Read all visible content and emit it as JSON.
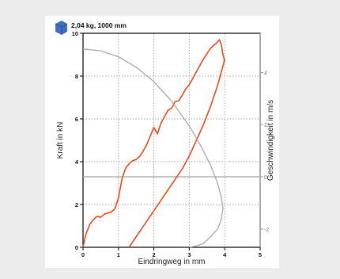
{
  "chart_data": {
    "type": "line",
    "title": "2,04 kg, 1000 mm",
    "xlabel": "Eindringweg in mm",
    "ylabel": "Kraft in kN",
    "y2label": "Geschwindigkeit in m/s",
    "xlim": [
      0,
      5
    ],
    "ylim": [
      0,
      10
    ],
    "y2lim": [
      -2.7,
      5.5
    ],
    "x_ticks": [
      "0",
      "1",
      "2",
      "3",
      "4",
      "5"
    ],
    "y_ticks": [
      "0",
      "2",
      "4",
      "6",
      "8",
      "10"
    ],
    "y2_ticks": [
      "-2",
      "0",
      "2",
      "4"
    ],
    "grid": true,
    "series": [
      {
        "axis": "left",
        "color": "#e8491d",
        "x": [
          0,
          0.05,
          0.1,
          0.2,
          0.3,
          0.4,
          0.5,
          0.6,
          0.7,
          0.8,
          0.9,
          1.0,
          1.1,
          1.2,
          1.3,
          1.4,
          1.5,
          1.6,
          1.7,
          1.8,
          1.9,
          2.0,
          2.1,
          2.2,
          2.3,
          2.4,
          2.5,
          2.6,
          2.7,
          2.8,
          2.9,
          3.0,
          3.1,
          3.2,
          3.3,
          3.4,
          3.5,
          3.6,
          3.7,
          3.8,
          3.85,
          3.9,
          3.95,
          4.0
        ],
        "y": [
          0,
          0.4,
          0.7,
          1.1,
          1.3,
          1.45,
          1.4,
          1.55,
          1.6,
          1.65,
          1.8,
          2.3,
          3.2,
          3.7,
          3.9,
          4.05,
          4.1,
          4.25,
          4.5,
          4.8,
          5.2,
          5.6,
          5.3,
          5.8,
          6.1,
          6.4,
          6.5,
          6.8,
          6.85,
          7.1,
          7.4,
          7.6,
          7.9,
          8.2,
          8.5,
          8.8,
          9.05,
          9.3,
          9.45,
          9.6,
          9.7,
          9.5,
          9.0,
          8.7
        ]
      },
      {
        "axis": "right",
        "color": "#e8491d",
        "x": [
          1.3,
          1.6,
          2.0,
          2.4,
          2.8,
          3.0,
          3.2,
          3.4,
          3.6,
          3.8,
          3.9,
          4.0
        ],
        "y": [
          -2.7,
          -2.1,
          -1.3,
          -0.5,
          0.3,
          0.8,
          1.4,
          2.0,
          2.7,
          3.5,
          4.0,
          4.5
        ]
      },
      {
        "axis": "right",
        "color": "#a8a8a8",
        "x": [
          0,
          0.5,
          1.0,
          1.5,
          2.0,
          2.5,
          3.0,
          3.3,
          3.6,
          3.8,
          3.9,
          3.95,
          3.9,
          3.8,
          3.6,
          3.4,
          3.2,
          3.0
        ],
        "y": [
          4.9,
          4.83,
          4.6,
          4.2,
          3.65,
          2.9,
          1.95,
          1.25,
          0.45,
          -0.25,
          -0.75,
          -1.2,
          -1.65,
          -2.0,
          -2.3,
          -2.55,
          -2.65,
          -2.7
        ]
      }
    ],
    "reference_line": {
      "axis": "right",
      "y": 0,
      "color": "#a8a8a8"
    }
  }
}
